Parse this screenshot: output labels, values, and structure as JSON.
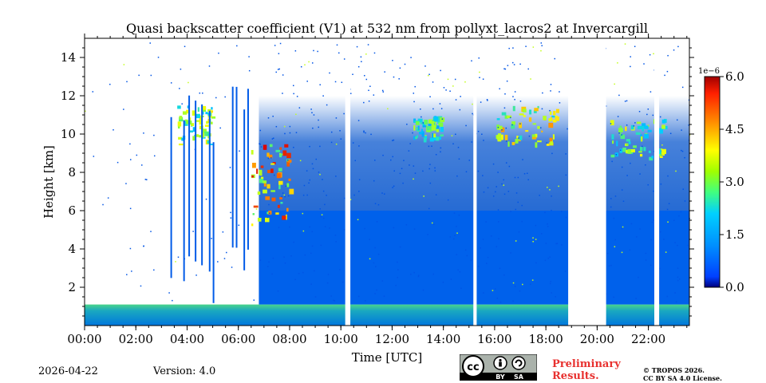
{
  "chart_data": {
    "type": "heatmap",
    "title": "Quasi backscatter coefficient (V1) at 532 nm from pollyxt_lacros2 at Invercargill",
    "xlabel": "Time [UTC]",
    "ylabel": "Height [km]",
    "xlim": [
      0,
      23.6
    ],
    "ylim": [
      0,
      15
    ],
    "x_ticks": [
      0,
      2,
      4,
      6,
      8,
      10,
      12,
      14,
      16,
      18,
      20,
      22
    ],
    "x_tick_labels": [
      "00:00",
      "02:00",
      "04:00",
      "06:00",
      "08:00",
      "10:00",
      "12:00",
      "14:00",
      "16:00",
      "18:00",
      "20:00",
      "22:00"
    ],
    "y_ticks": [
      2,
      4,
      6,
      8,
      10,
      12,
      14
    ],
    "y_tick_labels": [
      "2",
      "4",
      "6",
      "8",
      "10",
      "12",
      "14"
    ],
    "colorbar": {
      "range": [
        0.0,
        6.0
      ],
      "exponent_label": "1e−6",
      "ticks": [
        0.0,
        1.5,
        3.0,
        4.5,
        6.0
      ],
      "tick_labels": [
        "0.0",
        "1.5",
        "3.0",
        "4.5",
        "6.0"
      ],
      "colormap": "jet"
    },
    "data_gaps_hours": [
      [
        10.17,
        10.37
      ],
      [
        15.17,
        15.3
      ],
      [
        18.87,
        20.35
      ],
      [
        22.23,
        22.42
      ]
    ],
    "regions": [
      {
        "name": "boundary layer",
        "time_range": [
          0,
          23.6
        ],
        "height_range": [
          0,
          1.1
        ],
        "value": 1.4
      },
      {
        "name": "dense aerosol",
        "time_range": [
          6.8,
          23.6
        ],
        "height_range": [
          1.1,
          6.0
        ],
        "value": 0.5
      },
      {
        "name": "cirrus",
        "time_range": [
          6.5,
          8.0
        ],
        "height_range": [
          5.3,
          9.5
        ],
        "value": 5.0
      },
      {
        "name": "cirrus",
        "time_range": [
          3.6,
          5.0
        ],
        "height_range": [
          9.5,
          11.5
        ],
        "value": 3.5
      },
      {
        "name": "cirrus",
        "time_range": [
          12.8,
          13.9
        ],
        "height_range": [
          9.8,
          11.0
        ],
        "value": 3.0
      },
      {
        "name": "cirrus",
        "time_range": [
          16.0,
          18.5
        ],
        "height_range": [
          9.5,
          11.5
        ],
        "value": 4.0
      },
      {
        "name": "cirrus",
        "time_range": [
          20.5,
          22.6
        ],
        "height_range": [
          8.8,
          10.8
        ],
        "value": 3.5
      }
    ]
  },
  "footer": {
    "date": "2026-04-22",
    "version": "Version: 4.0",
    "license_badge": [
      "BY",
      "SA"
    ],
    "preliminary": [
      "Preliminary",
      "Results."
    ],
    "copyright": [
      "© TROPOS 2026.",
      "CC BY SA 4.0 License."
    ]
  },
  "colors": {
    "low": "#0051cc",
    "mid": "#00e000",
    "high": "#e00000",
    "preliminary": "#e8312f"
  }
}
